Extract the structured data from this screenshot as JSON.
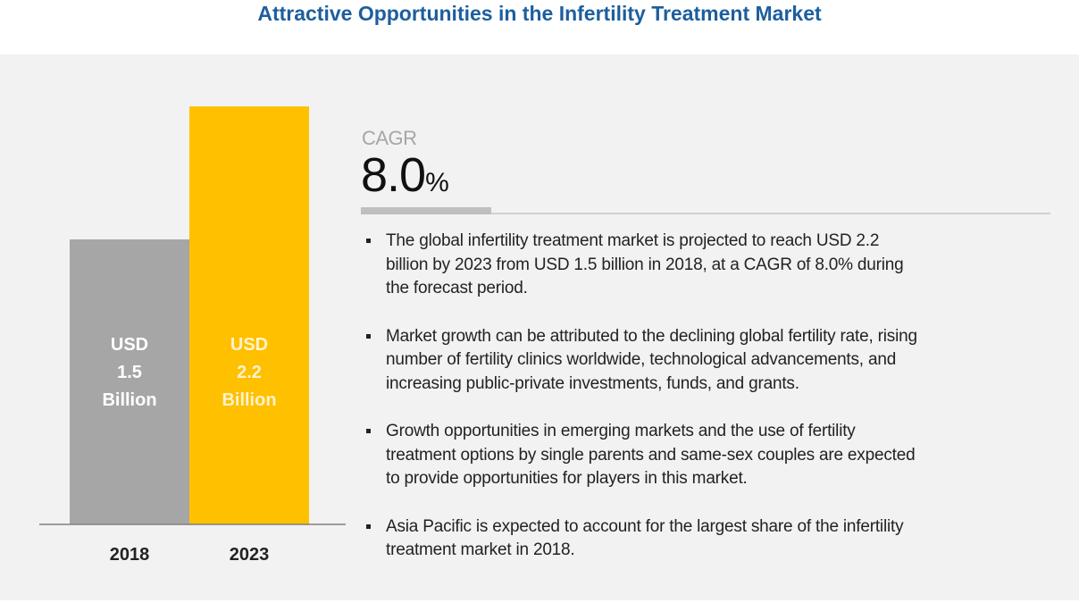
{
  "title": "Attractive Opportunities in the Infertility Treatment Market",
  "chart_data": {
    "type": "bar",
    "categories": [
      "2018",
      "2023"
    ],
    "values": [
      1.5,
      2.2
    ],
    "unit": "USD Billion",
    "data_labels": [
      [
        "USD",
        "1.5",
        "Billion"
      ],
      [
        "USD",
        "2.2",
        "Billion"
      ]
    ],
    "colors": [
      "#a6a6a6",
      "#ffc000"
    ],
    "label_colors": [
      "#ffffff",
      "#fff2cc"
    ],
    "grid": false
  },
  "cagr": {
    "label": "CAGR",
    "value": "8.0",
    "unit": "%"
  },
  "bullets": [
    {
      "lines": [
        "The global infertility treatment market is projected to reach USD 2.2",
        "billion by 2023 from USD 1.5 billion in 2018, at a CAGR of 8.0% during",
        "the forecast period."
      ]
    },
    {
      "lines": [
        "Market growth can be attributed to the declining global fertility rate, rising",
        "number of fertility clinics worldwide, technological advancements, and",
        "increasing public-private investments, funds, and grants."
      ]
    },
    {
      "lines": [
        "Growth opportunities in emerging markets and the use of fertility",
        "treatment options by single parents and same-sex couples are expected",
        "to provide opportunities for players in this market."
      ]
    },
    {
      "lines": [
        "Asia Pacific is expected to account for the largest share of the infertility",
        "treatment market in 2018."
      ]
    }
  ]
}
